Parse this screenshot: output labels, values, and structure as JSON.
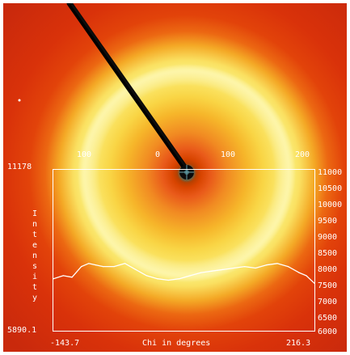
{
  "image": {
    "top_axis_ticks": [
      "100",
      "0",
      "100",
      "200"
    ],
    "left_axis": {
      "max_label": "11178",
      "min_label": "5890.1",
      "title": "Intensity"
    },
    "right_axis_ticks": [
      "11000",
      "10500",
      "10000",
      "9500",
      "9000",
      "8500",
      "8000",
      "7500",
      "7000",
      "6500",
      "6000"
    ],
    "bottom_axis": {
      "left_label": "-143.7",
      "title": "Chi in degrees",
      "right_label": "216.3"
    }
  },
  "colors": {
    "axis": "#ffffff",
    "trace": "#ffffff",
    "background_red": "#d9320a",
    "ring_yellow": "#fbef7b"
  },
  "chart_data": {
    "type": "line",
    "xlabel": "Chi in degrees",
    "ylabel": "Intensity",
    "xlim": [
      -143.7,
      216.3
    ],
    "ylim": [
      5890.1,
      11178
    ],
    "x": [
      -143.7,
      -130,
      -118,
      -105,
      -95,
      -85,
      -75,
      -60,
      -45,
      -30,
      -15,
      0,
      15,
      30,
      45,
      60,
      75,
      90,
      105,
      120,
      135,
      150,
      165,
      180,
      195,
      205,
      216.3
    ],
    "y": [
      7600,
      7700,
      7650,
      8000,
      8100,
      8050,
      8000,
      8000,
      8100,
      7900,
      7700,
      7600,
      7550,
      7600,
      7700,
      7800,
      7850,
      7900,
      7950,
      8000,
      7950,
      8050,
      8100,
      8000,
      7800,
      7700,
      7450
    ]
  }
}
